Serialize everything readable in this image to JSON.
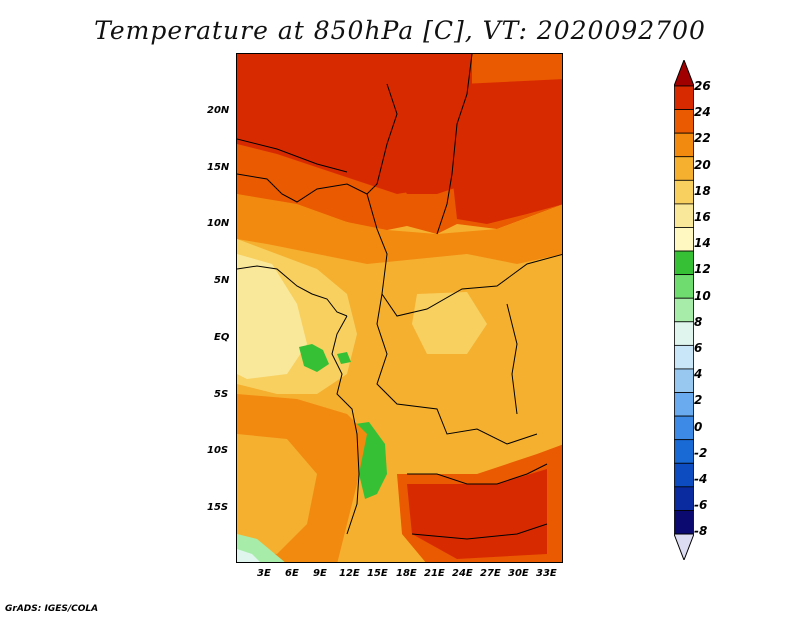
{
  "title": "Temperature at 850hPa [C], VT: 2020092700",
  "credit": "GrADS: IGES/COLA",
  "map": {
    "lat_labels": [
      "20N",
      "15N",
      "10N",
      "5N",
      "EQ",
      "5S",
      "10S",
      "15S"
    ],
    "lon_labels": [
      "3E",
      "6E",
      "9E",
      "12E",
      "15E",
      "18E",
      "21E",
      "24E",
      "27E",
      "30E",
      "33E"
    ]
  },
  "colorbar": {
    "labels": [
      "26",
      "24",
      "22",
      "20",
      "18",
      "16",
      "14",
      "12",
      "10",
      "8",
      "6",
      "4",
      "2",
      "0",
      "-2",
      "-4",
      "-6",
      "-8"
    ],
    "colors": [
      "#a00000",
      "#d82a00",
      "#ea5a00",
      "#f28a10",
      "#f5b030",
      "#f8d060",
      "#fae89a",
      "#fff8c0",
      "#36c036",
      "#6edc6e",
      "#a8ecaa",
      "#dff5ee",
      "#c8e6f8",
      "#98c8f0",
      "#6aaaee",
      "#3c8ae6",
      "#1a6ad6",
      "#0c4cc0",
      "#0a2aa0",
      "#0a0a70",
      "#dcdcf2"
    ]
  },
  "colors": {
    "hot_red": "#d82a00",
    "orange_red": "#ea5a00",
    "orange": "#f28a10",
    "light_orange": "#f5b030",
    "yellow_orange": "#f8d060",
    "pale_yellow": "#fae89a",
    "green": "#36c036",
    "light_blue": "#a8ecaa"
  }
}
